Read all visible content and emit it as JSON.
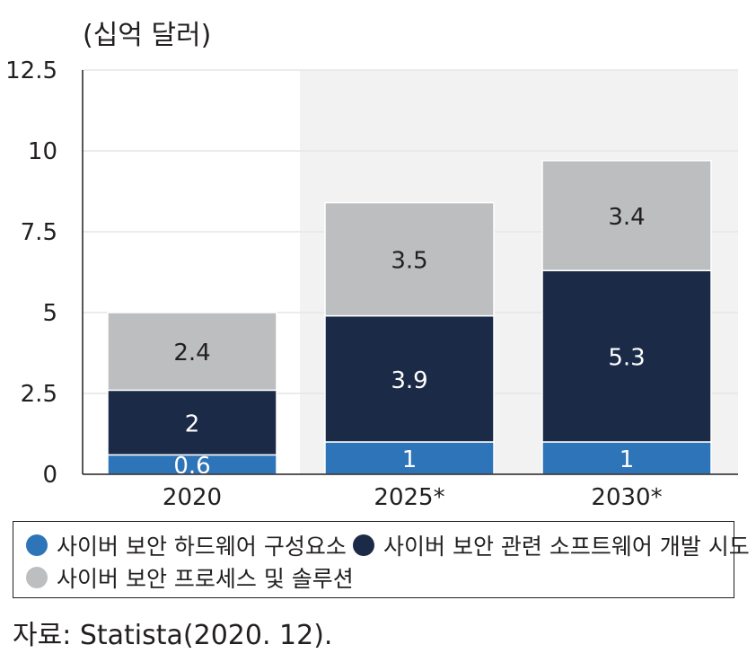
{
  "unit_label": "(십억 달러)",
  "source": "자료: Statista(2020. 12).",
  "chart_data": {
    "type": "bar",
    "stacked": true,
    "categories": [
      "2020",
      "2025*",
      "2030*"
    ],
    "highlighted_categories": [
      "2025*",
      "2030*"
    ],
    "series": [
      {
        "name": "사이버 보안 하드웨어 구성요소",
        "values": [
          0.6,
          1,
          1
        ],
        "labels": [
          "0.6",
          "1",
          "1"
        ],
        "color": "#2e74b8"
      },
      {
        "name": "사이버 보안 관련 소프트웨어 개발 시도",
        "values": [
          2,
          3.9,
          5.3
        ],
        "labels": [
          "2",
          "3.9",
          "5.3"
        ],
        "color": "#1b2a47"
      },
      {
        "name": "사이버 보안 프로세스 및 솔루션",
        "values": [
          2.4,
          3.5,
          3.4
        ],
        "labels": [
          "2.4",
          "3.5",
          "3.4"
        ],
        "color": "#bcbec0"
      }
    ],
    "yticks": [
      "0",
      "2.5",
      "5",
      "7.5",
      "10",
      "12.5"
    ],
    "ylim": [
      0,
      12.5
    ],
    "grid": true,
    "legend_position": "bottom"
  }
}
